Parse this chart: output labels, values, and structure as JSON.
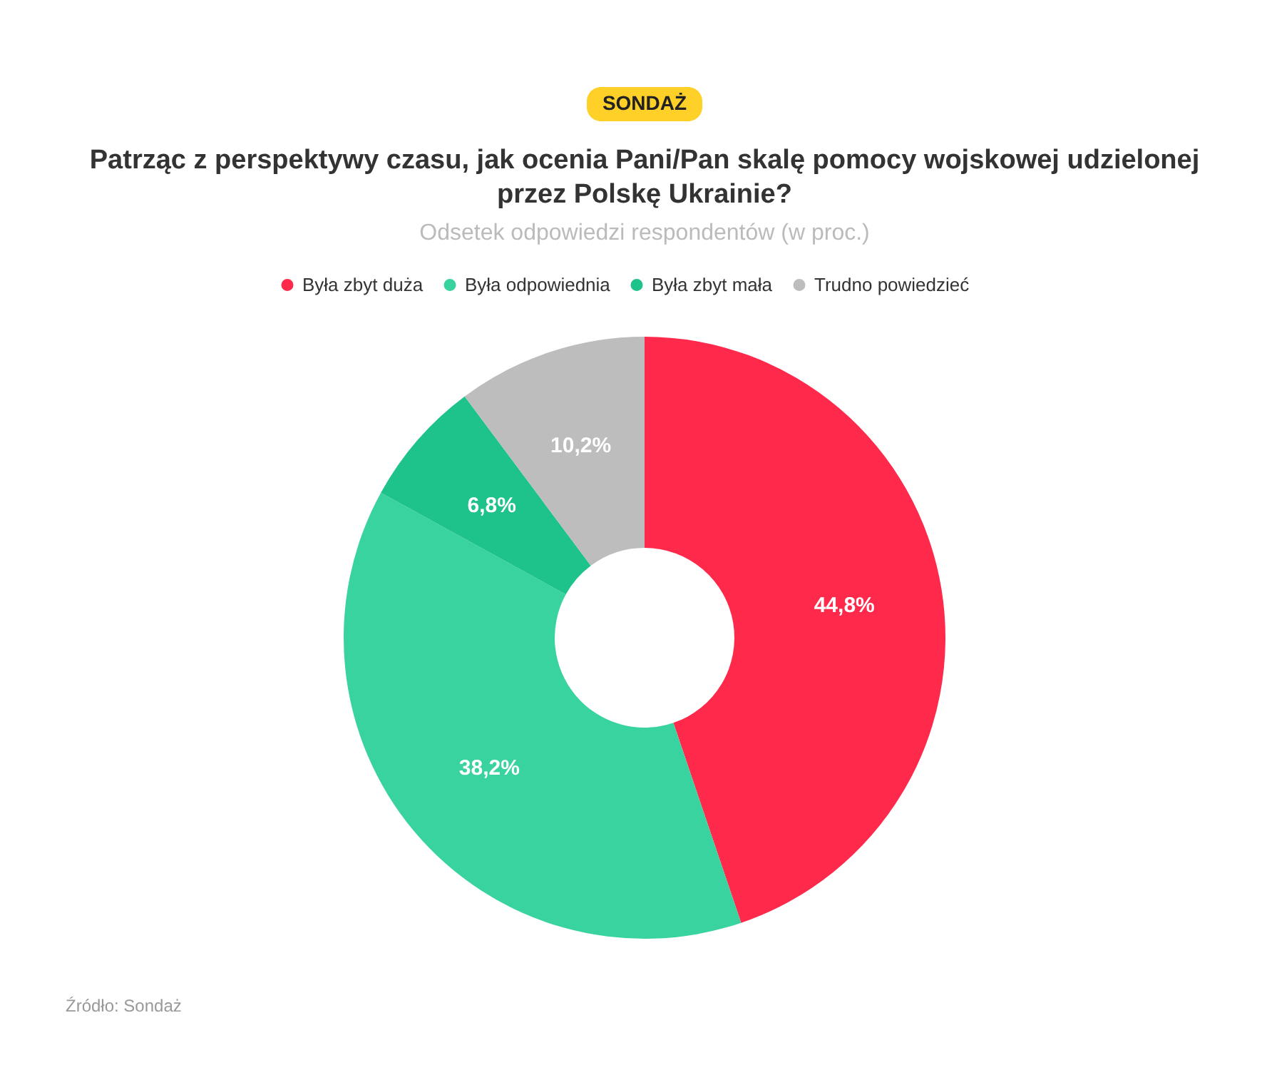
{
  "chart_data": {
    "type": "donut",
    "title": "Patrząc z perspektywy czasu, jak ocenia Pani/Pan skalę pomocy wojskowej udzielonej przez Polskę Ukrainie?",
    "subtitle": "Odsetek odpowiedzi respondentów (w proc.)",
    "categories": [
      "Była zbyt duża",
      "Była odpowiednia",
      "Była zbyt mała",
      "Trudno powiedzieć"
    ],
    "values": [
      44.8,
      38.2,
      6.8,
      10.2
    ],
    "colors": [
      "#ff2a4b",
      "#38d39f",
      "#1ec28b",
      "#bdbdbd"
    ],
    "value_labels": [
      "44,8%",
      "38,2%",
      "6,8%",
      "10,2%"
    ],
    "legend": "top",
    "annotations": [
      "SONDAŻ",
      "Źródło: Sondaż"
    ]
  }
}
